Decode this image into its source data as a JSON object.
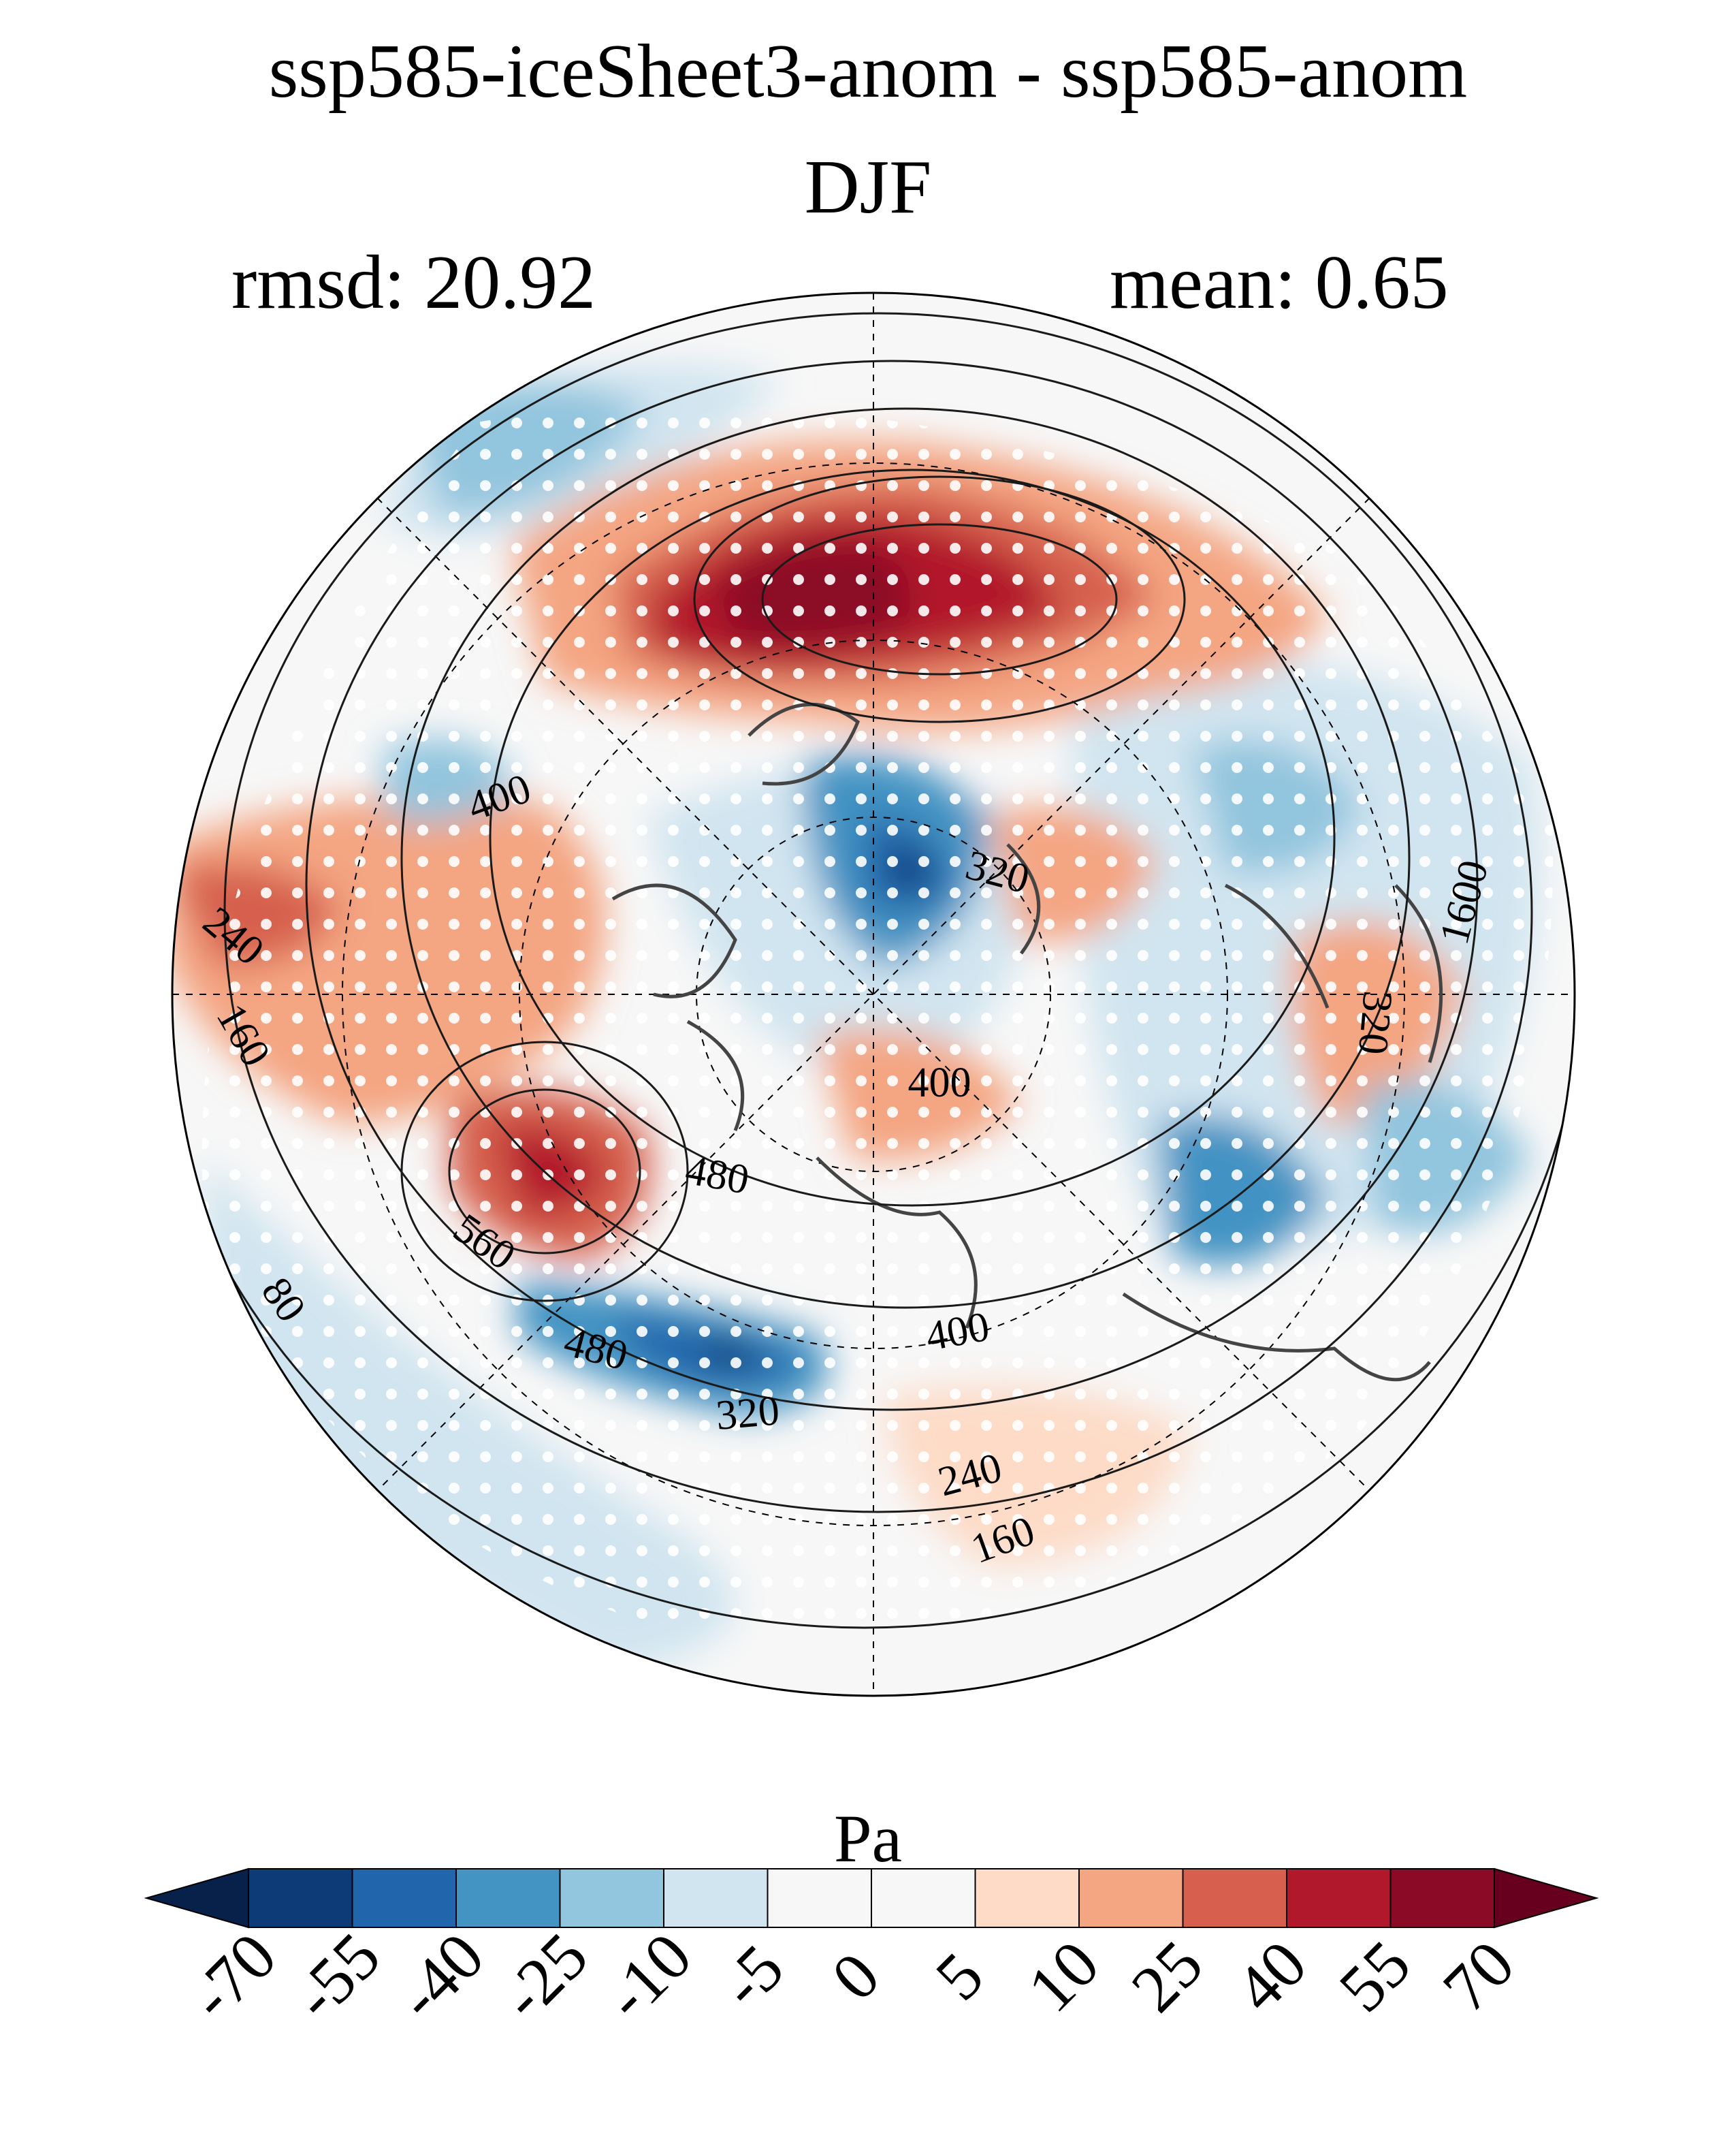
{
  "figure": {
    "title": "ssp585-iceSheet3-anom - ssp585-anom",
    "season": "DJF",
    "rmsd_text": "rmsd: 20.92",
    "mean_text": "mean: 0.65"
  },
  "map": {
    "projection": "north polar stereographic",
    "stippling": "white dots mark significant anomalies",
    "contour_labels": [
      "400",
      "320",
      "240",
      "160",
      "400",
      "480",
      "560",
      "480",
      "400",
      "320",
      "240",
      "160",
      "80",
      "320",
      "1600"
    ]
  },
  "colorbar": {
    "units": "Pa",
    "tick_labels": [
      "-70",
      "-55",
      "-40",
      "-25",
      "-10",
      "-5",
      "0",
      "5",
      "10",
      "25",
      "40",
      "55",
      "70"
    ],
    "colors": [
      "#08214a",
      "#0d3b78",
      "#2166ac",
      "#4393c3",
      "#92c5de",
      "#d1e5f0",
      "#f7f7f7",
      "#f7f7f7",
      "#fddbc7",
      "#f4a582",
      "#d6604d",
      "#b2182b",
      "#8b0a26",
      "#67001f"
    ]
  }
}
